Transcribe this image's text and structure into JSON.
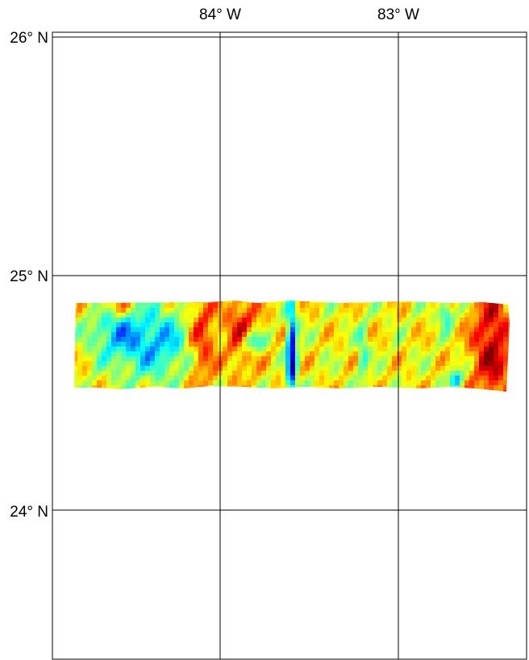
{
  "map": {
    "projection": "mercator",
    "lon_range_deg": [
      -84.94,
      -82.63
    ],
    "lat_range_deg": [
      23.37,
      26.02
    ],
    "meridians_deg": [
      -84,
      -83
    ],
    "parallels_deg": [
      26,
      25,
      24
    ],
    "labels": {
      "lon": [
        "84° W",
        "83° W"
      ],
      "lat": [
        "26° N",
        "25° N",
        "24° N"
      ]
    },
    "colors": {
      "background": "#ffffff",
      "frame": "#000000",
      "gridline": "#000000",
      "label": "#000000"
    }
  },
  "swath": {
    "type": "gridded-field",
    "colormap": "jet",
    "lon_extent_deg": [
      -84.81,
      -82.4
    ],
    "lat_extent_deg": [
      24.53,
      24.88
    ],
    "colorbar": "none",
    "field_description_visible": "false-color anomaly strip"
  }
}
